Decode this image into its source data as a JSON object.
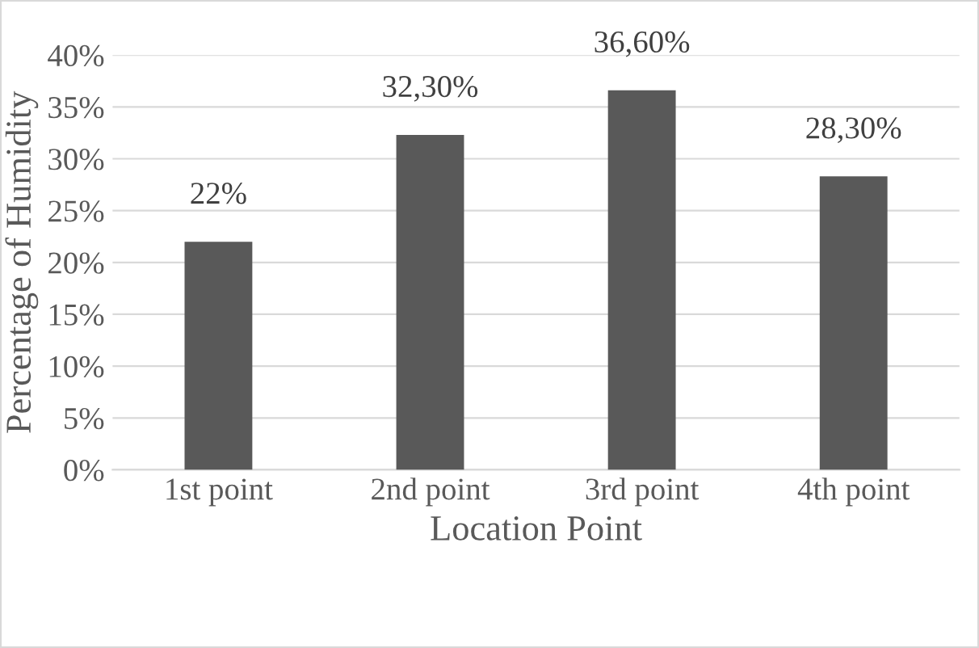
{
  "chart_data": {
    "type": "bar",
    "xlabel": "Location Point",
    "ylabel": "Percentage of Humidity",
    "categories": [
      "1st point",
      "2nd point",
      "3rd point",
      "4th point"
    ],
    "values": [
      22,
      32.3,
      36.6,
      28.3
    ],
    "value_labels": [
      "22%",
      "32,30%",
      "36,60%",
      "28,30%"
    ],
    "color": "#595959",
    "ylim": [
      0,
      40
    ],
    "yticks": [
      {
        "value": 0,
        "label": "0%"
      },
      {
        "value": 5,
        "label": "5%"
      },
      {
        "value": 10,
        "label": "10%"
      },
      {
        "value": 15,
        "label": "15%"
      },
      {
        "value": 20,
        "label": "20%"
      },
      {
        "value": 25,
        "label": "25%"
      },
      {
        "value": 30,
        "label": "30%"
      },
      {
        "value": 35,
        "label": "35%"
      },
      {
        "value": 40,
        "label": "40%"
      }
    ],
    "grid": "y",
    "legend": false
  }
}
